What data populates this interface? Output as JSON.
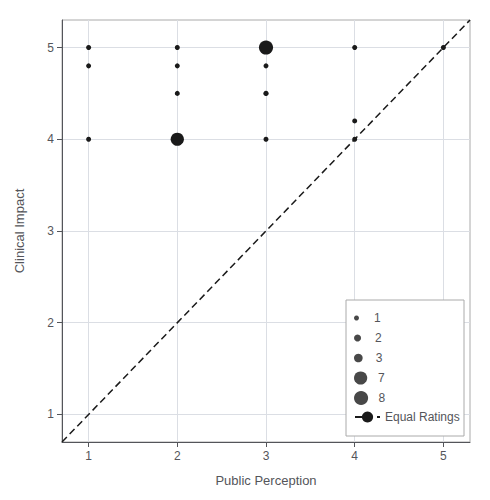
{
  "chart_data": {
    "type": "scatter",
    "x": [
      1,
      1,
      1,
      2,
      2,
      2,
      2,
      3,
      3,
      3,
      3,
      3,
      4,
      4,
      4,
      5
    ],
    "values": [
      5,
      4.8,
      4,
      5,
      4.8,
      4.5,
      4,
      5,
      4.8,
      4.5,
      4.5,
      4,
      5,
      4.2,
      4,
      5
    ],
    "sizes": [
      1,
      1,
      1,
      1,
      1,
      1,
      7,
      8,
      1,
      1,
      1,
      1,
      1,
      1,
      1,
      1
    ],
    "color": "#1a1a1a",
    "marker": "circle",
    "xlabel": "Public Perception",
    "ylabel": "Clinical Impact",
    "xlim": [
      0.7,
      5.3
    ],
    "ylim": [
      0.7,
      5.3
    ],
    "xticks": [
      1,
      2,
      3,
      4,
      5
    ],
    "yticks": [
      1,
      2,
      3,
      4,
      5
    ],
    "grid": true,
    "legend": "lower right",
    "size_legend": [
      1,
      2,
      3,
      7,
      8
    ],
    "series": [
      {
        "name": "Equal Ratings",
        "type": "line",
        "line_style": "dashed",
        "color": "#1a1a1a",
        "x": [
          0.7,
          5.3
        ],
        "values": [
          0.7,
          5.3
        ]
      }
    ]
  }
}
